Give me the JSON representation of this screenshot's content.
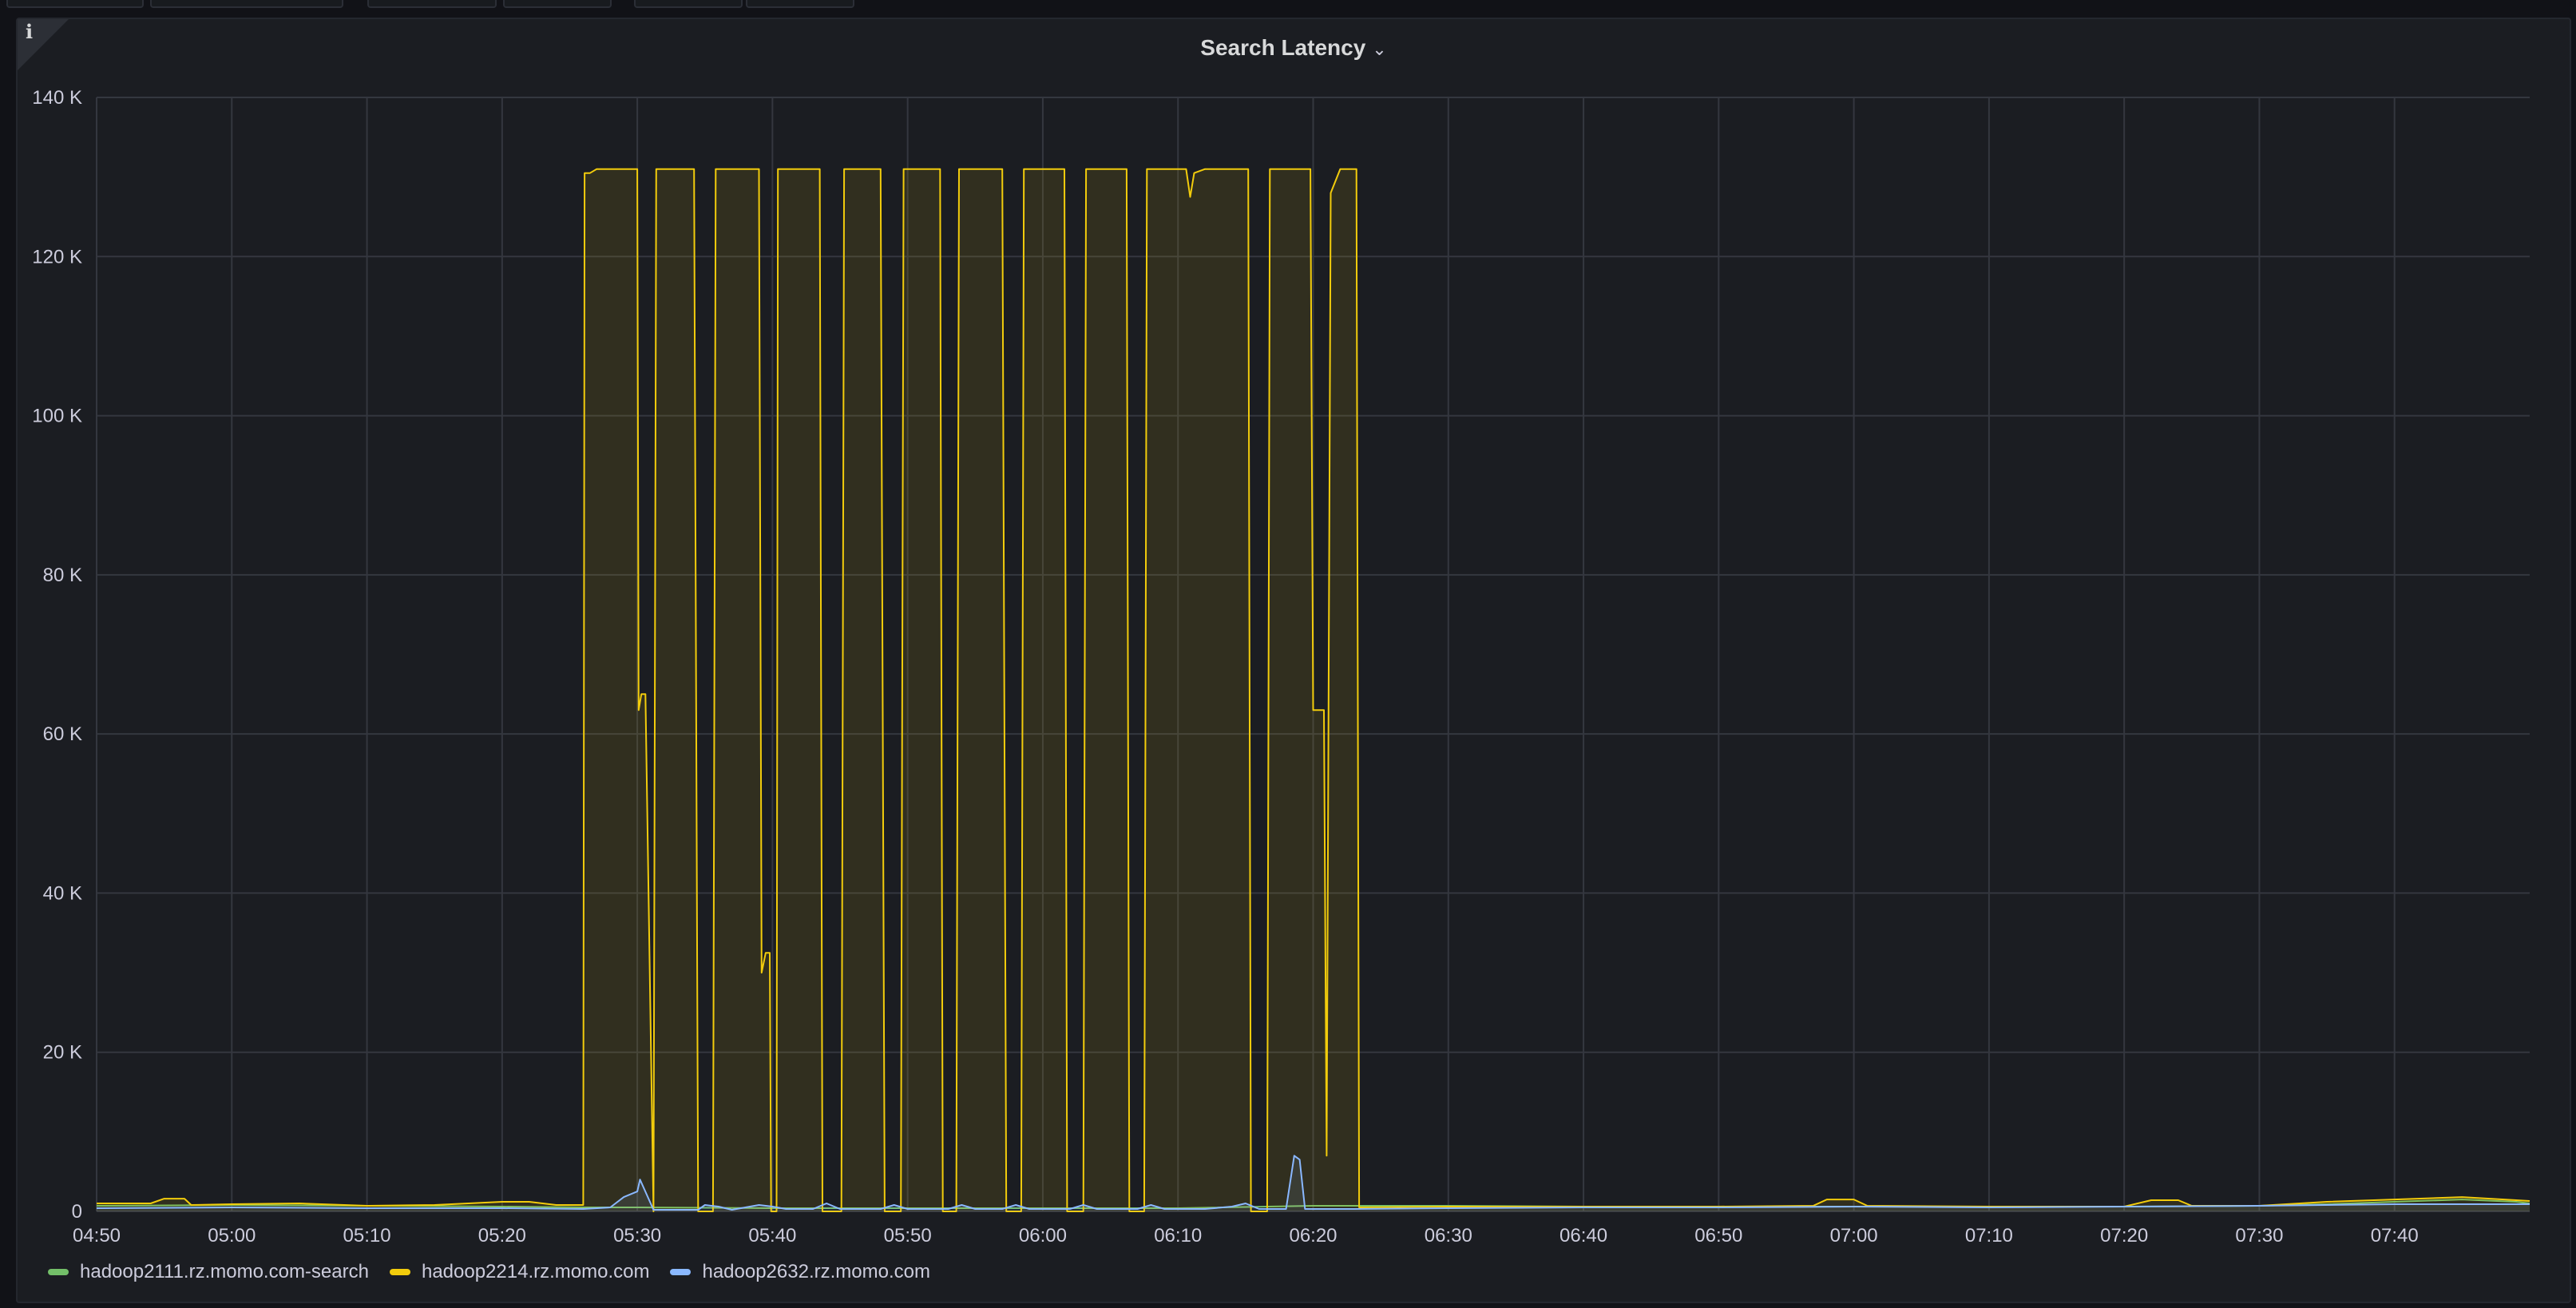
{
  "panel": {
    "title": "Search Latency"
  },
  "chart_data": {
    "type": "line",
    "title": "Search Latency",
    "xlabel": "",
    "ylabel": "",
    "ylim": [
      0,
      140000
    ],
    "xlim_minutes": [
      290,
      470
    ],
    "grid": true,
    "legend_position": "bottom-left",
    "y_ticks": [
      {
        "value": 0,
        "label": "0"
      },
      {
        "value": 20000,
        "label": "20 K"
      },
      {
        "value": 40000,
        "label": "40 K"
      },
      {
        "value": 60000,
        "label": "60 K"
      },
      {
        "value": 80000,
        "label": "80 K"
      },
      {
        "value": 100000,
        "label": "100 K"
      },
      {
        "value": 120000,
        "label": "120 K"
      },
      {
        "value": 140000,
        "label": "140 K"
      }
    ],
    "x_ticks": [
      {
        "value": 290,
        "label": "04:50"
      },
      {
        "value": 300,
        "label": "05:00"
      },
      {
        "value": 310,
        "label": "05:10"
      },
      {
        "value": 320,
        "label": "05:20"
      },
      {
        "value": 330,
        "label": "05:30"
      },
      {
        "value": 340,
        "label": "05:40"
      },
      {
        "value": 350,
        "label": "05:50"
      },
      {
        "value": 360,
        "label": "06:00"
      },
      {
        "value": 370,
        "label": "06:10"
      },
      {
        "value": 380,
        "label": "06:20"
      },
      {
        "value": 390,
        "label": "06:30"
      },
      {
        "value": 400,
        "label": "06:40"
      },
      {
        "value": 410,
        "label": "06:50"
      },
      {
        "value": 420,
        "label": "07:00"
      },
      {
        "value": 430,
        "label": "07:10"
      },
      {
        "value": 440,
        "label": "07:20"
      },
      {
        "value": 450,
        "label": "07:30"
      },
      {
        "value": 460,
        "label": "07:40"
      }
    ],
    "series": [
      {
        "name": "hadoop2111.rz.momo.com-search",
        "color": "#73bf69",
        "points": [
          [
            290,
            700
          ],
          [
            300,
            800
          ],
          [
            310,
            700
          ],
          [
            320,
            600
          ],
          [
            326,
            500
          ],
          [
            330,
            500
          ],
          [
            340,
            400
          ],
          [
            350,
            400
          ],
          [
            360,
            400
          ],
          [
            370,
            400
          ],
          [
            380,
            700
          ],
          [
            390,
            700
          ],
          [
            400,
            600
          ],
          [
            410,
            600
          ],
          [
            420,
            600
          ],
          [
            430,
            600
          ],
          [
            440,
            600
          ],
          [
            450,
            700
          ],
          [
            455,
            900
          ],
          [
            460,
            1200
          ],
          [
            465,
            1500
          ],
          [
            469,
            1200
          ],
          [
            470,
            1000
          ]
        ]
      },
      {
        "name": "hadoop2214.rz.momo.com",
        "color": "#f2cc0c",
        "fill": true,
        "points": [
          [
            290,
            1000
          ],
          [
            294,
            1000
          ],
          [
            295,
            1600
          ],
          [
            296.5,
            1600
          ],
          [
            297,
            800
          ],
          [
            300,
            900
          ],
          [
            305,
            1000
          ],
          [
            310,
            700
          ],
          [
            315,
            800
          ],
          [
            320,
            1200
          ],
          [
            322,
            1200
          ],
          [
            324,
            800
          ],
          [
            326,
            800
          ],
          [
            326.1,
            130500
          ],
          [
            326.5,
            130500
          ],
          [
            327,
            131000
          ],
          [
            330,
            131000
          ],
          [
            330.1,
            63000
          ],
          [
            330.3,
            65000
          ],
          [
            330.6,
            65000
          ],
          [
            331.2,
            0
          ],
          [
            331.4,
            131000
          ],
          [
            334.2,
            131000
          ],
          [
            334.5,
            0
          ],
          [
            335.6,
            0
          ],
          [
            335.8,
            131000
          ],
          [
            339,
            131000
          ],
          [
            339.2,
            30000
          ],
          [
            339.5,
            32500
          ],
          [
            339.8,
            32500
          ],
          [
            339.9,
            0
          ],
          [
            340.3,
            0
          ],
          [
            340.4,
            131000
          ],
          [
            343.5,
            131000
          ],
          [
            343.7,
            0
          ],
          [
            345.1,
            0
          ],
          [
            345.3,
            131000
          ],
          [
            348,
            131000
          ],
          [
            348.3,
            0
          ],
          [
            349.5,
            0
          ],
          [
            349.7,
            131000
          ],
          [
            352.4,
            131000
          ],
          [
            352.6,
            0
          ],
          [
            353.6,
            0
          ],
          [
            353.8,
            131000
          ],
          [
            357,
            131000
          ],
          [
            357.3,
            0
          ],
          [
            358.4,
            0
          ],
          [
            358.6,
            131000
          ],
          [
            361.6,
            131000
          ],
          [
            361.8,
            0
          ],
          [
            363,
            0
          ],
          [
            363.2,
            131000
          ],
          [
            366.2,
            131000
          ],
          [
            366.4,
            0
          ],
          [
            367.5,
            0
          ],
          [
            367.7,
            131000
          ],
          [
            370.6,
            131000
          ],
          [
            370.9,
            127500
          ],
          [
            371.2,
            130500
          ],
          [
            372,
            131000
          ],
          [
            375.2,
            131000
          ],
          [
            375.4,
            0
          ],
          [
            376.6,
            0
          ],
          [
            376.8,
            131000
          ],
          [
            379.8,
            131000
          ],
          [
            380,
            63000
          ],
          [
            380.8,
            63000
          ],
          [
            381,
            7000
          ],
          [
            381.3,
            128000
          ],
          [
            382,
            131000
          ],
          [
            383.2,
            131000
          ],
          [
            383.4,
            500
          ],
          [
            390,
            600
          ],
          [
            400,
            600
          ],
          [
            410,
            600
          ],
          [
            417,
            700
          ],
          [
            418,
            1500
          ],
          [
            420,
            1500
          ],
          [
            421,
            700
          ],
          [
            430,
            600
          ],
          [
            440,
            600
          ],
          [
            442,
            1400
          ],
          [
            444,
            1400
          ],
          [
            445,
            700
          ],
          [
            450,
            700
          ],
          [
            455,
            1200
          ],
          [
            460,
            1500
          ],
          [
            465,
            1800
          ],
          [
            469,
            1400
          ],
          [
            470,
            1300
          ]
        ]
      },
      {
        "name": "hadoop2632.rz.momo.com",
        "color": "#8ab8ff",
        "fill": true,
        "points": [
          [
            290,
            400
          ],
          [
            300,
            500
          ],
          [
            310,
            400
          ],
          [
            320,
            400
          ],
          [
            326,
            300
          ],
          [
            328,
            500
          ],
          [
            329,
            1800
          ],
          [
            330,
            2500
          ],
          [
            330.2,
            4000
          ],
          [
            331.2,
            200
          ],
          [
            334.5,
            200
          ],
          [
            335,
            800
          ],
          [
            336,
            600
          ],
          [
            337,
            200
          ],
          [
            339,
            800
          ],
          [
            340,
            600
          ],
          [
            341,
            300
          ],
          [
            343,
            300
          ],
          [
            344,
            1000
          ],
          [
            345,
            300
          ],
          [
            348,
            300
          ],
          [
            349,
            800
          ],
          [
            350,
            300
          ],
          [
            353,
            300
          ],
          [
            354,
            800
          ],
          [
            355,
            300
          ],
          [
            357,
            300
          ],
          [
            358,
            800
          ],
          [
            359,
            300
          ],
          [
            362,
            300
          ],
          [
            363,
            800
          ],
          [
            364,
            300
          ],
          [
            367,
            300
          ],
          [
            368,
            800
          ],
          [
            369,
            300
          ],
          [
            372,
            300
          ],
          [
            374,
            600
          ],
          [
            375,
            1000
          ],
          [
            376,
            300
          ],
          [
            378,
            300
          ],
          [
            378.6,
            7000
          ],
          [
            379,
            6500
          ],
          [
            379.4,
            300
          ],
          [
            383,
            300
          ],
          [
            390,
            400
          ],
          [
            400,
            500
          ],
          [
            410,
            500
          ],
          [
            420,
            600
          ],
          [
            430,
            500
          ],
          [
            440,
            600
          ],
          [
            450,
            700
          ],
          [
            460,
            900
          ],
          [
            470,
            900
          ]
        ]
      }
    ]
  }
}
